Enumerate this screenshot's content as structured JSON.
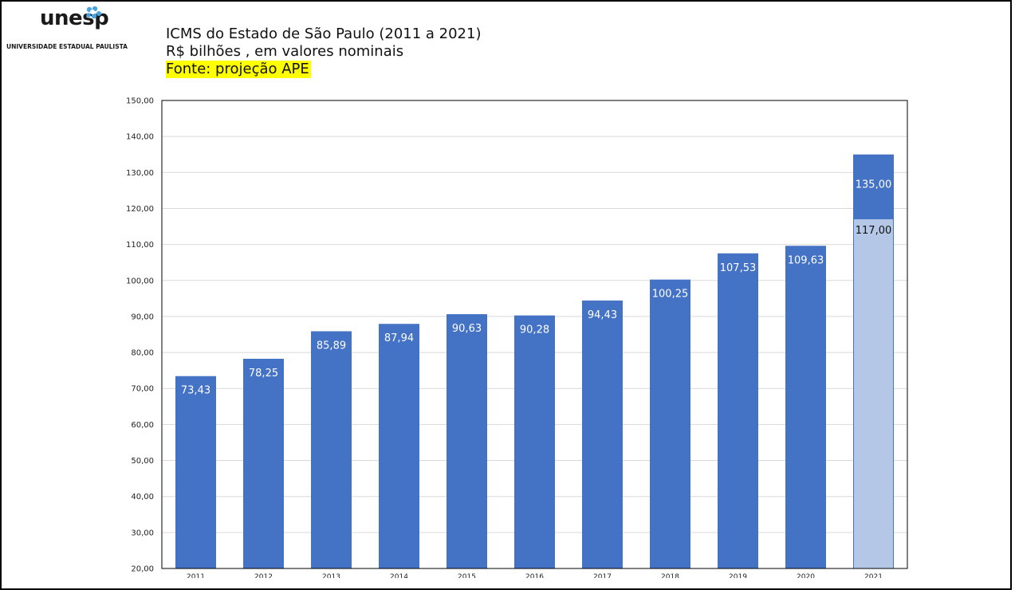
{
  "logo": {
    "wordmark": "unesp",
    "subtitle": "UNIVERSIDADE ESTADUAL PAULISTA"
  },
  "header": {
    "title": "ICMS do Estado de São Paulo (2011 a 2021)",
    "subtitle": "R$ bilhões , em valores nominais",
    "source": "Fonte: projeção APE"
  },
  "colors": {
    "bar": "#4472c4",
    "projection_bar": "#b4c7e7",
    "source_highlight": "#ffff00",
    "gridline": "#d9d9d9",
    "logo_burst": "#4aa3df"
  },
  "chart_data": {
    "type": "bar",
    "categories": [
      "2011",
      "2012",
      "2013",
      "2014",
      "2015",
      "2016",
      "2017",
      "2018",
      "2019",
      "2020",
      "2021"
    ],
    "values": [
      73.43,
      78.25,
      85.89,
      87.94,
      90.63,
      90.28,
      94.43,
      100.25,
      107.53,
      109.63,
      135.0
    ],
    "value_labels": [
      "73,43",
      "78,25",
      "85,89",
      "87,94",
      "90,63",
      "90,28",
      "94,43",
      "100,25",
      "107,53",
      "109,63",
      "135,00"
    ],
    "projection_2021": {
      "category": "2021",
      "value": 117.0,
      "label": "117,00"
    },
    "ylim": [
      20,
      150
    ],
    "y_ticks": [
      20,
      30,
      40,
      50,
      60,
      70,
      80,
      90,
      100,
      110,
      120,
      130,
      140,
      150
    ],
    "y_tick_labels": [
      "20,00",
      "30,00",
      "40,00",
      "50,00",
      "60,00",
      "70,00",
      "80,00",
      "90,00",
      "100,00",
      "110,00",
      "120,00",
      "130,00",
      "140,00",
      "150,00"
    ],
    "grid": true
  }
}
